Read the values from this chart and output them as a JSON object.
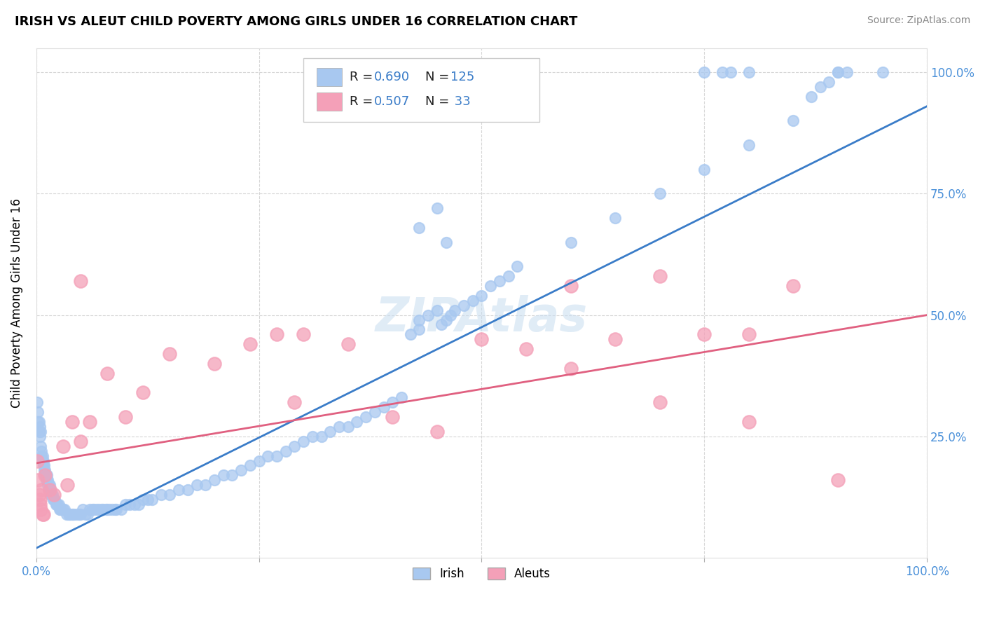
{
  "title": "IRISH VS ALEUT CHILD POVERTY AMONG GIRLS UNDER 16 CORRELATION CHART",
  "source": "Source: ZipAtlas.com",
  "ylabel": "Child Poverty Among Girls Under 16",
  "xlim": [
    0,
    1.0
  ],
  "ylim": [
    0,
    1.05
  ],
  "xticks": [
    0,
    0.25,
    0.5,
    0.75,
    1.0
  ],
  "xticklabels": [
    "0.0%",
    "",
    "",
    "",
    "100.0%"
  ],
  "yticks": [
    0.25,
    0.5,
    0.75,
    1.0
  ],
  "yticklabels_right": [
    "25.0%",
    "50.0%",
    "75.0%",
    "100.0%"
  ],
  "irish_color": "#a8c8f0",
  "aleut_color": "#f4a0b8",
  "irish_line_color": "#3a7cc8",
  "aleut_line_color": "#e06080",
  "irish_R": 0.69,
  "irish_N": 125,
  "aleut_R": 0.507,
  "aleut_N": 33,
  "watermark": "ZIPAtlas",
  "background_color": "#ffffff",
  "plot_bg_color": "#ffffff",
  "grid_color": "#cccccc",
  "tick_color": "#4a90d9",
  "legend_label_irish": "Irish",
  "legend_label_aleut": "Aleuts",
  "blue_text_color": "#3a7cc8",
  "irish_scatter": [
    [
      0.001,
      0.32
    ],
    [
      0.002,
      0.3
    ],
    [
      0.002,
      0.28
    ],
    [
      0.003,
      0.28
    ],
    [
      0.003,
      0.26
    ],
    [
      0.004,
      0.27
    ],
    [
      0.004,
      0.25
    ],
    [
      0.005,
      0.26
    ],
    [
      0.005,
      0.23
    ],
    [
      0.006,
      0.22
    ],
    [
      0.006,
      0.21
    ],
    [
      0.007,
      0.21
    ],
    [
      0.007,
      0.2
    ],
    [
      0.008,
      0.2
    ],
    [
      0.008,
      0.19
    ],
    [
      0.009,
      0.19
    ],
    [
      0.009,
      0.18
    ],
    [
      0.01,
      0.18
    ],
    [
      0.01,
      0.17
    ],
    [
      0.011,
      0.17
    ],
    [
      0.011,
      0.16
    ],
    [
      0.012,
      0.17
    ],
    [
      0.012,
      0.16
    ],
    [
      0.013,
      0.16
    ],
    [
      0.013,
      0.15
    ],
    [
      0.014,
      0.15
    ],
    [
      0.014,
      0.14
    ],
    [
      0.015,
      0.15
    ],
    [
      0.015,
      0.14
    ],
    [
      0.016,
      0.14
    ],
    [
      0.016,
      0.13
    ],
    [
      0.017,
      0.13
    ],
    [
      0.018,
      0.13
    ],
    [
      0.019,
      0.12
    ],
    [
      0.02,
      0.12
    ],
    [
      0.021,
      0.12
    ],
    [
      0.022,
      0.11
    ],
    [
      0.023,
      0.11
    ],
    [
      0.024,
      0.11
    ],
    [
      0.025,
      0.11
    ],
    [
      0.026,
      0.1
    ],
    [
      0.027,
      0.1
    ],
    [
      0.028,
      0.1
    ],
    [
      0.03,
      0.1
    ],
    [
      0.032,
      0.1
    ],
    [
      0.034,
      0.09
    ],
    [
      0.036,
      0.09
    ],
    [
      0.038,
      0.09
    ],
    [
      0.04,
      0.09
    ],
    [
      0.042,
      0.09
    ],
    [
      0.045,
      0.09
    ],
    [
      0.048,
      0.09
    ],
    [
      0.05,
      0.09
    ],
    [
      0.052,
      0.1
    ],
    [
      0.055,
      0.09
    ],
    [
      0.058,
      0.09
    ],
    [
      0.06,
      0.1
    ],
    [
      0.063,
      0.1
    ],
    [
      0.065,
      0.1
    ],
    [
      0.068,
      0.1
    ],
    [
      0.07,
      0.1
    ],
    [
      0.073,
      0.1
    ],
    [
      0.075,
      0.1
    ],
    [
      0.078,
      0.1
    ],
    [
      0.08,
      0.1
    ],
    [
      0.082,
      0.1
    ],
    [
      0.085,
      0.1
    ],
    [
      0.088,
      0.1
    ],
    [
      0.09,
      0.1
    ],
    [
      0.095,
      0.1
    ],
    [
      0.1,
      0.11
    ],
    [
      0.105,
      0.11
    ],
    [
      0.11,
      0.11
    ],
    [
      0.115,
      0.11
    ],
    [
      0.12,
      0.12
    ],
    [
      0.125,
      0.12
    ],
    [
      0.13,
      0.12
    ],
    [
      0.14,
      0.13
    ],
    [
      0.15,
      0.13
    ],
    [
      0.16,
      0.14
    ],
    [
      0.17,
      0.14
    ],
    [
      0.18,
      0.15
    ],
    [
      0.19,
      0.15
    ],
    [
      0.2,
      0.16
    ],
    [
      0.21,
      0.17
    ],
    [
      0.22,
      0.17
    ],
    [
      0.23,
      0.18
    ],
    [
      0.24,
      0.19
    ],
    [
      0.25,
      0.2
    ],
    [
      0.26,
      0.21
    ],
    [
      0.27,
      0.21
    ],
    [
      0.28,
      0.22
    ],
    [
      0.29,
      0.23
    ],
    [
      0.3,
      0.24
    ],
    [
      0.31,
      0.25
    ],
    [
      0.32,
      0.25
    ],
    [
      0.33,
      0.26
    ],
    [
      0.34,
      0.27
    ],
    [
      0.35,
      0.27
    ],
    [
      0.36,
      0.28
    ],
    [
      0.37,
      0.29
    ],
    [
      0.38,
      0.3
    ],
    [
      0.39,
      0.31
    ],
    [
      0.4,
      0.32
    ],
    [
      0.41,
      0.33
    ],
    [
      0.42,
      0.46
    ],
    [
      0.43,
      0.47
    ],
    [
      0.43,
      0.49
    ],
    [
      0.44,
      0.5
    ],
    [
      0.45,
      0.51
    ],
    [
      0.455,
      0.48
    ],
    [
      0.46,
      0.49
    ],
    [
      0.465,
      0.5
    ],
    [
      0.47,
      0.51
    ],
    [
      0.48,
      0.52
    ],
    [
      0.49,
      0.53
    ],
    [
      0.5,
      0.54
    ],
    [
      0.51,
      0.56
    ],
    [
      0.52,
      0.57
    ],
    [
      0.53,
      0.58
    ],
    [
      0.43,
      0.68
    ],
    [
      0.45,
      0.72
    ],
    [
      0.46,
      0.65
    ],
    [
      0.54,
      0.6
    ],
    [
      0.6,
      0.65
    ],
    [
      0.65,
      0.7
    ],
    [
      0.7,
      0.75
    ],
    [
      0.75,
      0.8
    ],
    [
      0.8,
      0.85
    ],
    [
      0.85,
      0.9
    ],
    [
      0.87,
      0.95
    ],
    [
      0.88,
      0.97
    ],
    [
      0.89,
      0.98
    ],
    [
      0.9,
      1.0
    ],
    [
      0.91,
      1.0
    ],
    [
      0.75,
      1.0
    ],
    [
      0.77,
      1.0
    ],
    [
      0.78,
      1.0
    ],
    [
      0.8,
      1.0
    ],
    [
      0.9,
      1.0
    ],
    [
      0.95,
      1.0
    ]
  ],
  "aleut_scatter": [
    [
      0.001,
      0.2
    ],
    [
      0.002,
      0.16
    ],
    [
      0.003,
      0.13
    ],
    [
      0.004,
      0.12
    ],
    [
      0.004,
      0.11
    ],
    [
      0.005,
      0.1
    ],
    [
      0.006,
      0.14
    ],
    [
      0.007,
      0.09
    ],
    [
      0.008,
      0.09
    ],
    [
      0.01,
      0.17
    ],
    [
      0.015,
      0.14
    ],
    [
      0.02,
      0.13
    ],
    [
      0.03,
      0.23
    ],
    [
      0.035,
      0.15
    ],
    [
      0.04,
      0.28
    ],
    [
      0.05,
      0.24
    ],
    [
      0.06,
      0.28
    ],
    [
      0.08,
      0.38
    ],
    [
      0.1,
      0.29
    ],
    [
      0.12,
      0.34
    ],
    [
      0.15,
      0.42
    ],
    [
      0.2,
      0.4
    ],
    [
      0.24,
      0.44
    ],
    [
      0.27,
      0.46
    ],
    [
      0.29,
      0.32
    ],
    [
      0.3,
      0.46
    ],
    [
      0.35,
      0.44
    ],
    [
      0.4,
      0.29
    ],
    [
      0.45,
      0.26
    ],
    [
      0.5,
      0.45
    ],
    [
      0.55,
      0.43
    ],
    [
      0.6,
      0.39
    ],
    [
      0.65,
      0.45
    ],
    [
      0.7,
      0.58
    ],
    [
      0.75,
      0.46
    ],
    [
      0.8,
      0.46
    ],
    [
      0.85,
      0.56
    ],
    [
      0.9,
      0.16
    ],
    [
      0.05,
      0.57
    ],
    [
      0.6,
      0.56
    ],
    [
      0.7,
      0.32
    ],
    [
      0.8,
      0.28
    ]
  ],
  "irish_line_x": [
    0.0,
    1.0
  ],
  "irish_line_y": [
    0.02,
    0.93
  ],
  "aleut_line_x": [
    0.0,
    1.0
  ],
  "aleut_line_y": [
    0.195,
    0.5
  ]
}
